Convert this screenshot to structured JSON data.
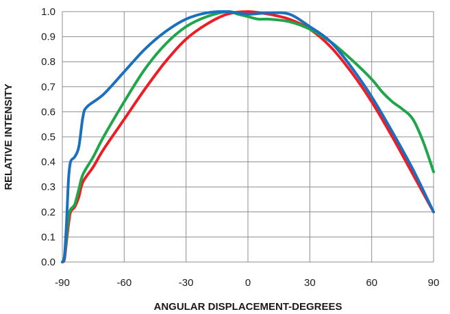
{
  "chart_data": {
    "type": "line",
    "title": "",
    "xlabel": "ANGULAR DISPLACEMENT-DEGREES",
    "ylabel": "RELATIVE INTENSITY",
    "xlim": [
      -90,
      90
    ],
    "ylim": [
      0,
      1
    ],
    "xticks": [
      -90,
      -60,
      -30,
      0,
      30,
      60,
      90
    ],
    "xtick_labels": [
      "-90",
      "-60",
      "-30",
      "0",
      "30",
      "60",
      "90"
    ],
    "yticks": [
      0,
      0.1,
      0.2,
      0.3,
      0.4,
      0.5,
      0.6,
      0.7,
      0.8,
      0.9,
      1.0
    ],
    "ytick_labels": [
      "0.0",
      "0.1",
      "0.2",
      "0.3",
      "0.4",
      "0.5",
      "0.6",
      "0.7",
      "0.8",
      "0.9",
      "1.0"
    ],
    "grid": true,
    "legend": "none",
    "series": [
      {
        "color": "#ee1c25",
        "points": [
          [
            -90,
            0.0
          ],
          [
            -89,
            0.01
          ],
          [
            -88,
            0.08
          ],
          [
            -87,
            0.15
          ],
          [
            -86,
            0.2
          ],
          [
            -84,
            0.22
          ],
          [
            -82,
            0.26
          ],
          [
            -80,
            0.32
          ],
          [
            -75,
            0.38
          ],
          [
            -70,
            0.45
          ],
          [
            -60,
            0.57
          ],
          [
            -50,
            0.69
          ],
          [
            -40,
            0.8
          ],
          [
            -30,
            0.89
          ],
          [
            -20,
            0.95
          ],
          [
            -10,
            0.99
          ],
          [
            0,
            1.0
          ],
          [
            10,
            0.99
          ],
          [
            20,
            0.97
          ],
          [
            30,
            0.93
          ],
          [
            40,
            0.86
          ],
          [
            50,
            0.76
          ],
          [
            60,
            0.64
          ],
          [
            70,
            0.5
          ],
          [
            80,
            0.35
          ],
          [
            90,
            0.2
          ]
        ]
      },
      {
        "color": "#1fa64a",
        "points": [
          [
            -90,
            0.0
          ],
          [
            -89,
            0.02
          ],
          [
            -88,
            0.1
          ],
          [
            -87,
            0.18
          ],
          [
            -86,
            0.21
          ],
          [
            -84,
            0.23
          ],
          [
            -82,
            0.29
          ],
          [
            -80,
            0.35
          ],
          [
            -75,
            0.42
          ],
          [
            -70,
            0.5
          ],
          [
            -60,
            0.64
          ],
          [
            -50,
            0.77
          ],
          [
            -40,
            0.87
          ],
          [
            -30,
            0.94
          ],
          [
            -20,
            0.98
          ],
          [
            -10,
            1.0
          ],
          [
            -5,
            0.99
          ],
          [
            0,
            0.98
          ],
          [
            5,
            0.97
          ],
          [
            10,
            0.97
          ],
          [
            20,
            0.96
          ],
          [
            30,
            0.93
          ],
          [
            40,
            0.88
          ],
          [
            50,
            0.81
          ],
          [
            60,
            0.73
          ],
          [
            65,
            0.68
          ],
          [
            70,
            0.64
          ],
          [
            75,
            0.61
          ],
          [
            80,
            0.57
          ],
          [
            85,
            0.48
          ],
          [
            90,
            0.36
          ]
        ]
      },
      {
        "color": "#1a6fbf",
        "points": [
          [
            -90,
            0.0
          ],
          [
            -89,
            0.02
          ],
          [
            -88,
            0.15
          ],
          [
            -87,
            0.33
          ],
          [
            -86,
            0.4
          ],
          [
            -84,
            0.42
          ],
          [
            -82,
            0.46
          ],
          [
            -80,
            0.58
          ],
          [
            -78,
            0.62
          ],
          [
            -70,
            0.67
          ],
          [
            -60,
            0.76
          ],
          [
            -50,
            0.85
          ],
          [
            -40,
            0.92
          ],
          [
            -30,
            0.97
          ],
          [
            -20,
            0.995
          ],
          [
            -10,
            1.0
          ],
          [
            0,
            0.99
          ],
          [
            10,
            0.995
          ],
          [
            20,
            0.99
          ],
          [
            30,
            0.94
          ],
          [
            40,
            0.88
          ],
          [
            50,
            0.78
          ],
          [
            60,
            0.66
          ],
          [
            70,
            0.52
          ],
          [
            80,
            0.37
          ],
          [
            90,
            0.2
          ]
        ]
      }
    ]
  }
}
